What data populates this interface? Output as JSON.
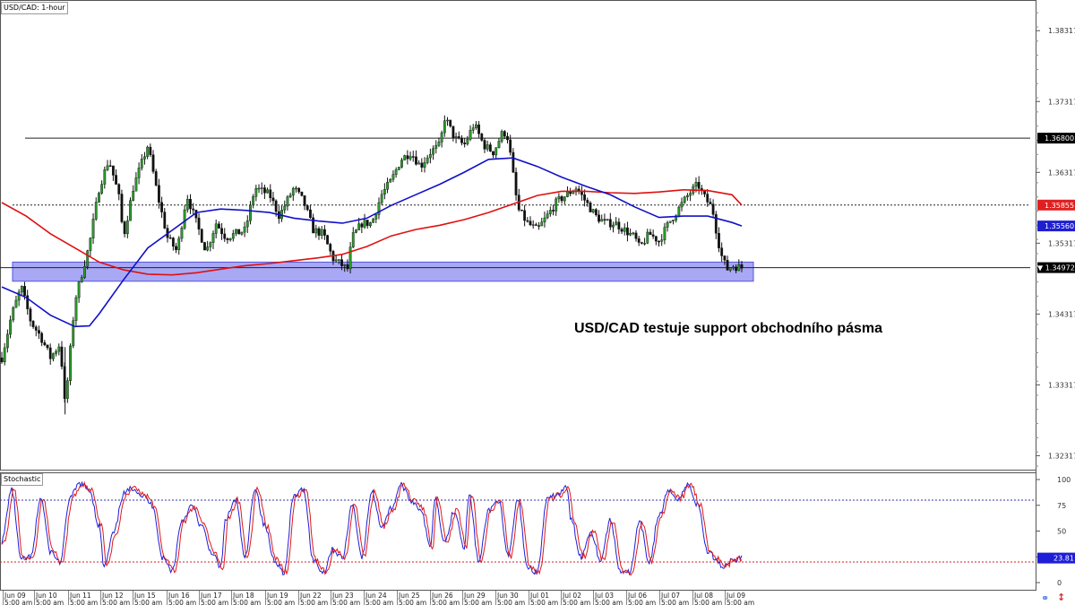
{
  "panel_title": "USD/CAD: 1-hour",
  "annotation": "USD/CAD testuje support obchodního pásma",
  "chart_data": [
    {
      "type": "candlestick",
      "symbol": "USD/CAD",
      "timeframe": "1-hour",
      "ylim": [
        1.3212,
        1.3875
      ],
      "y_ticks": [
        "1.38317",
        "1.37317",
        "1.36317",
        "1.35317",
        "1.34317",
        "1.33317",
        "1.32317"
      ],
      "x_labels_top": [
        "Jun 09",
        "Jun 10",
        "Jun 11",
        "Jun 12",
        "Jun 15",
        "Jun 16",
        "Jun 17",
        "Jun 18",
        "Jun 19",
        "Jun 22",
        "Jun 23",
        "Jun 24",
        "Jun 25",
        "Jun 26",
        "Jun 29",
        "Jun 30",
        "Jul 01",
        "Jul 02",
        "Jul 03",
        "Jul 06",
        "Jul 07",
        "Jul 08",
        "Jul 09"
      ],
      "x_labels_bottom": "5:00 am",
      "horizontal_lines": [
        {
          "price": 1.368,
          "label": "1.36800",
          "style": "solid"
        },
        {
          "price": 1.35855,
          "label": "1.35855",
          "style": "dotted"
        },
        {
          "price": 1.34972,
          "label": "1.34972",
          "style": "solid",
          "current": true
        }
      ],
      "price_labels": [
        {
          "label": "1.36800",
          "color": "#000000"
        },
        {
          "label": "1.35855",
          "color": "#e02020"
        },
        {
          "label": "1.35560",
          "color": "#1f1fd0"
        },
        {
          "label": "1.34972",
          "color": "#000000",
          "marker": "▼"
        }
      ],
      "support_zone": {
        "low": 1.3478,
        "high": 1.3505,
        "color": "#8b8bf0"
      },
      "ma_red": {
        "color": "#e01010",
        "last": 1.35855,
        "points": [
          [
            0,
            1.3589
          ],
          [
            5,
            1.357
          ],
          [
            10,
            1.3545
          ],
          [
            15,
            1.3525
          ],
          [
            20,
            1.3505
          ],
          [
            25,
            1.3494
          ],
          [
            30,
            1.3488
          ],
          [
            35,
            1.3487
          ],
          [
            40,
            1.349
          ],
          [
            45,
            1.3495
          ],
          [
            50,
            1.35
          ],
          [
            55,
            1.3503
          ],
          [
            60,
            1.3507
          ],
          [
            65,
            1.3511
          ],
          [
            70,
            1.3516
          ],
          [
            75,
            1.3527
          ],
          [
            80,
            1.3542
          ],
          [
            85,
            1.3551
          ],
          [
            90,
            1.3557
          ],
          [
            95,
            1.3565
          ],
          [
            100,
            1.3575
          ],
          [
            105,
            1.3587
          ],
          [
            110,
            1.3599
          ],
          [
            115,
            1.3605
          ],
          [
            120,
            1.3605
          ],
          [
            125,
            1.3603
          ],
          [
            130,
            1.3602
          ],
          [
            135,
            1.3604
          ],
          [
            140,
            1.3607
          ],
          [
            145,
            1.3606
          ],
          [
            150,
            1.36
          ],
          [
            152,
            1.35855
          ]
        ]
      },
      "ma_blue": {
        "color": "#1010c8",
        "last": 1.3556,
        "points": [
          [
            0,
            1.347
          ],
          [
            5,
            1.3455
          ],
          [
            10,
            1.343
          ],
          [
            15,
            1.3414
          ],
          [
            18,
            1.3415
          ],
          [
            20,
            1.3432
          ],
          [
            25,
            1.348
          ],
          [
            30,
            1.3525
          ],
          [
            35,
            1.355
          ],
          [
            40,
            1.3575
          ],
          [
            45,
            1.358
          ],
          [
            50,
            1.3578
          ],
          [
            55,
            1.3575
          ],
          [
            60,
            1.3567
          ],
          [
            65,
            1.3563
          ],
          [
            70,
            1.356
          ],
          [
            75,
            1.3567
          ],
          [
            80,
            1.3585
          ],
          [
            85,
            1.36
          ],
          [
            90,
            1.3615
          ],
          [
            95,
            1.3632
          ],
          [
            100,
            1.365
          ],
          [
            105,
            1.3652
          ],
          [
            110,
            1.364
          ],
          [
            115,
            1.3625
          ],
          [
            120,
            1.3612
          ],
          [
            125,
            1.36
          ],
          [
            130,
            1.3583
          ],
          [
            135,
            1.3568
          ],
          [
            140,
            1.357
          ],
          [
            145,
            1.357
          ],
          [
            150,
            1.3561
          ],
          [
            152,
            1.3556
          ]
        ]
      },
      "price_path": [
        [
          0,
          1.337
        ],
        [
          2,
          1.343
        ],
        [
          4,
          1.347
        ],
        [
          6,
          1.342
        ],
        [
          8,
          1.34
        ],
        [
          10,
          1.337
        ],
        [
          12,
          1.339
        ],
        [
          13,
          1.33
        ],
        [
          15,
          1.345
        ],
        [
          18,
          1.353
        ],
        [
          20,
          1.361
        ],
        [
          22,
          1.365
        ],
        [
          24,
          1.36
        ],
        [
          25,
          1.354
        ],
        [
          27,
          1.361
        ],
        [
          29,
          1.365
        ],
        [
          30,
          1.367
        ],
        [
          32,
          1.36
        ],
        [
          34,
          1.354
        ],
        [
          36,
          1.352
        ],
        [
          38,
          1.36
        ],
        [
          40,
          1.356
        ],
        [
          42,
          1.352
        ],
        [
          44,
          1.356
        ],
        [
          46,
          1.354
        ],
        [
          50,
          1.355
        ],
        [
          52,
          1.361
        ],
        [
          55,
          1.36
        ],
        [
          57,
          1.357
        ],
        [
          60,
          1.361
        ],
        [
          62,
          1.359
        ],
        [
          64,
          1.355
        ],
        [
          66,
          1.3545
        ],
        [
          68,
          1.351
        ],
        [
          70,
          1.35
        ],
        [
          71,
          1.3495
        ],
        [
          72,
          1.354
        ],
        [
          74,
          1.356
        ],
        [
          76,
          1.356
        ],
        [
          78,
          1.36
        ],
        [
          80,
          1.362
        ],
        [
          82,
          1.365
        ],
        [
          84,
          1.366
        ],
        [
          86,
          1.364
        ],
        [
          88,
          1.366
        ],
        [
          90,
          1.367
        ],
        [
          91,
          1.371
        ],
        [
          93,
          1.368
        ],
        [
          95,
          1.367
        ],
        [
          97,
          1.37
        ],
        [
          99,
          1.367
        ],
        [
          101,
          1.366
        ],
        [
          103,
          1.369
        ],
        [
          104,
          1.368
        ],
        [
          106,
          1.358
        ],
        [
          108,
          1.356
        ],
        [
          110,
          1.355
        ],
        [
          112,
          1.357
        ],
        [
          114,
          1.359
        ],
        [
          116,
          1.36
        ],
        [
          118,
          1.361
        ],
        [
          120,
          1.359
        ],
        [
          122,
          1.357
        ],
        [
          124,
          1.356
        ],
        [
          126,
          1.356
        ],
        [
          128,
          1.355
        ],
        [
          130,
          1.354
        ],
        [
          131,
          1.3525
        ],
        [
          133,
          1.3545
        ],
        [
          135,
          1.3535
        ],
        [
          137,
          1.356
        ],
        [
          139,
          1.358
        ],
        [
          141,
          1.36
        ],
        [
          143,
          1.3615
        ],
        [
          144,
          1.36
        ],
        [
          145,
          1.359
        ],
        [
          146,
          1.358
        ],
        [
          147,
          1.354
        ],
        [
          148,
          1.351
        ],
        [
          149,
          1.3495
        ],
        [
          150,
          1.35
        ],
        [
          152,
          1.3497
        ]
      ]
    },
    {
      "type": "line",
      "title": "Stochastic",
      "ylim": [
        0,
        100
      ],
      "y_ticks": [
        100,
        75,
        50,
        25,
        0
      ],
      "levels": [
        80,
        20
      ],
      "last_value": "23.81",
      "series_colors": [
        "#1e1ed8",
        "#e01818"
      ],
      "pivots": [
        [
          0,
          40
        ],
        [
          2,
          90
        ],
        [
          4,
          22
        ],
        [
          6,
          25
        ],
        [
          8,
          82
        ],
        [
          10,
          30
        ],
        [
          12,
          20
        ],
        [
          14,
          82
        ],
        [
          16,
          96
        ],
        [
          18,
          90
        ],
        [
          20,
          55
        ],
        [
          21,
          15
        ],
        [
          23,
          48
        ],
        [
          25,
          86
        ],
        [
          27,
          92
        ],
        [
          29,
          84
        ],
        [
          31,
          75
        ],
        [
          33,
          24
        ],
        [
          35,
          12
        ],
        [
          37,
          60
        ],
        [
          39,
          74
        ],
        [
          41,
          55
        ],
        [
          43,
          30
        ],
        [
          45,
          15
        ],
        [
          46,
          62
        ],
        [
          48,
          80
        ],
        [
          50,
          24
        ],
        [
          52,
          92
        ],
        [
          54,
          55
        ],
        [
          56,
          22
        ],
        [
          58,
          10
        ],
        [
          60,
          84
        ],
        [
          62,
          90
        ],
        [
          64,
          22
        ],
        [
          66,
          10
        ],
        [
          68,
          32
        ],
        [
          70,
          24
        ],
        [
          72,
          76
        ],
        [
          74,
          25
        ],
        [
          76,
          88
        ],
        [
          78,
          55
        ],
        [
          80,
          72
        ],
        [
          82,
          95
        ],
        [
          84,
          80
        ],
        [
          86,
          72
        ],
        [
          88,
          35
        ],
        [
          89,
          82
        ],
        [
          91,
          40
        ],
        [
          93,
          70
        ],
        [
          95,
          35
        ],
        [
          96,
          85
        ],
        [
          98,
          20
        ],
        [
          100,
          70
        ],
        [
          102,
          80
        ],
        [
          104,
          25
        ],
        [
          106,
          80
        ],
        [
          108,
          15
        ],
        [
          110,
          10
        ],
        [
          112,
          80
        ],
        [
          114,
          85
        ],
        [
          116,
          92
        ],
        [
          117,
          60
        ],
        [
          119,
          25
        ],
        [
          121,
          50
        ],
        [
          123,
          22
        ],
        [
          125,
          60
        ],
        [
          127,
          12
        ],
        [
          129,
          10
        ],
        [
          131,
          58
        ],
        [
          133,
          20
        ],
        [
          135,
          65
        ],
        [
          137,
          88
        ],
        [
          139,
          82
        ],
        [
          141,
          95
        ],
        [
          143,
          75
        ],
        [
          145,
          30
        ],
        [
          147,
          22
        ],
        [
          148,
          15
        ],
        [
          150,
          22
        ],
        [
          152,
          24
        ]
      ]
    }
  ],
  "colors": {
    "accent_blue": "#1010c8",
    "accent_red": "#e01010",
    "zone": "#8b8bf0"
  }
}
